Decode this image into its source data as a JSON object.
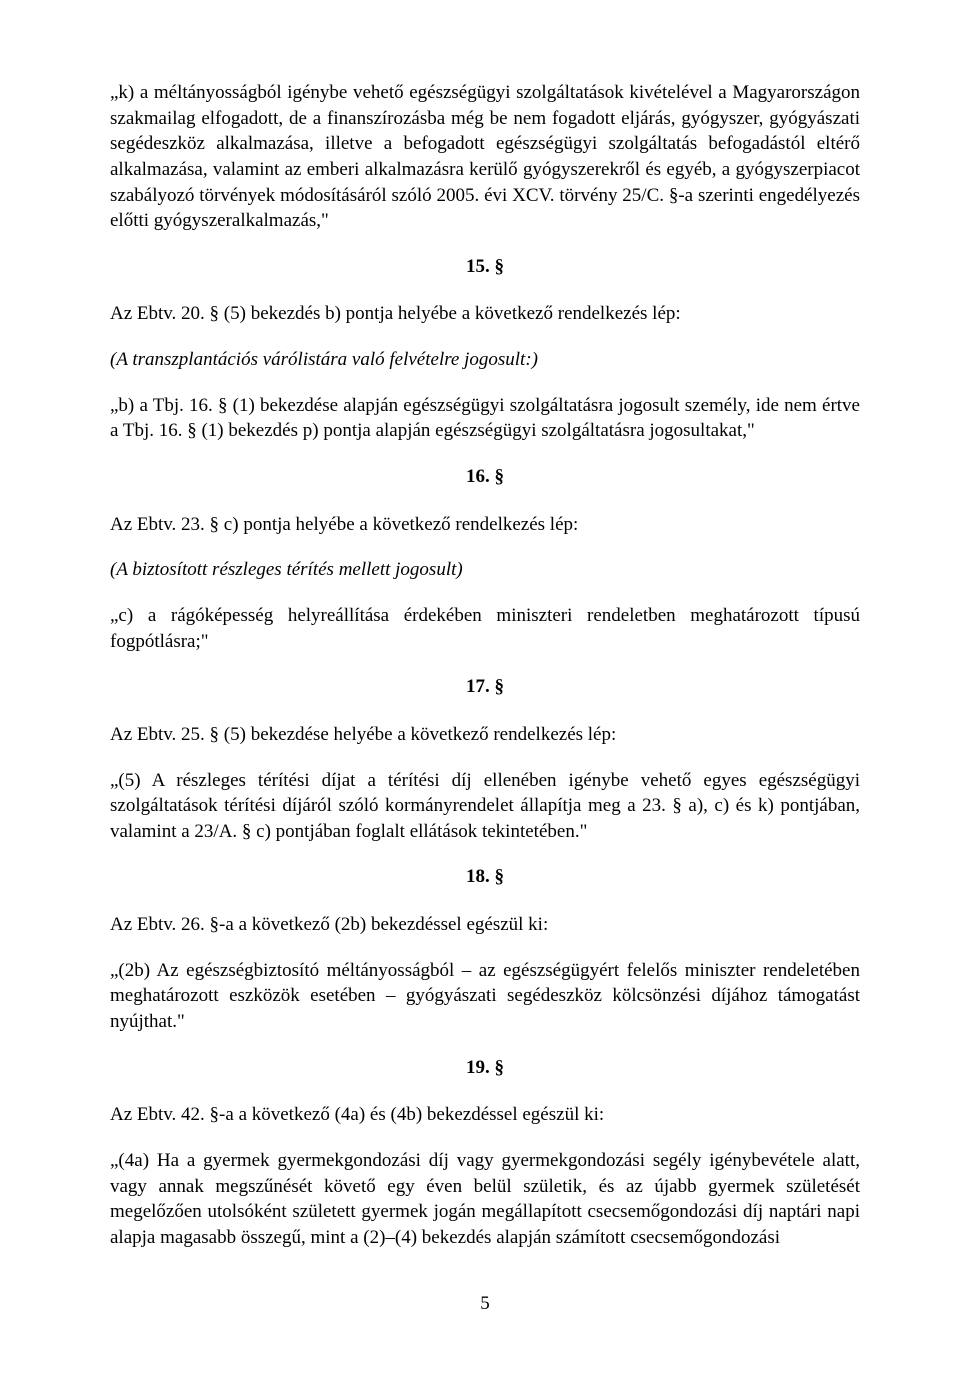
{
  "p1": "„k) a méltányosságból igénybe vehető egészségügyi szolgáltatások kivételével a Magyarországon szakmailag elfogadott, de a finanszírozásba még be nem fogadott eljárás, gyógyszer, gyógyászati segédeszköz alkalmazása, illetve a befogadott egészségügyi szolgáltatás befogadástól eltérő alkalmazása, valamint az emberi alkalmazásra kerülő gyógyszerekről és egyéb, a gyógyszerpiacot szabályozó törvények módosításáról szóló 2005. évi XCV. törvény 25/C. §-a szerinti engedélyezés előtti gyógyszeralkalmazás,\"",
  "s15": "15. §",
  "p2": "Az Ebtv. 20. § (5) bekezdés b) pontja helyébe a következő rendelkezés lép:",
  "p3": "(A transzplantációs várólistára való felvételre jogosult:)",
  "p4": "„b) a Tbj. 16. § (1) bekezdése alapján egészségügyi szolgáltatásra jogosult személy, ide nem értve a Tbj. 16. § (1) bekezdés p) pontja alapján egészségügyi szolgáltatásra jogosultakat,\"",
  "s16": "16. §",
  "p5": "Az Ebtv. 23. § c) pontja helyébe a következő rendelkezés lép:",
  "p6": "(A biztosított részleges térítés mellett jogosult)",
  "p7": "„c) a rágóképesség helyreállítása érdekében miniszteri rendeletben meghatározott típusú fogpótlásra;\"",
  "s17": "17. §",
  "p8": "Az Ebtv. 25. § (5) bekezdése helyébe a következő rendelkezés lép:",
  "p9": "„(5) A részleges térítési díjat a térítési díj ellenében igénybe vehető egyes egészségügyi szolgáltatások térítési díjáról szóló kormányrendelet állapítja meg a 23. § a), c) és k) pontjában, valamint a 23/A. § c) pontjában foglalt ellátások tekintetében.\"",
  "s18": "18. §",
  "p10": "Az Ebtv. 26. §-a a következő (2b) bekezdéssel egészül ki:",
  "p11": "„(2b) Az egészségbiztosító méltányosságból – az egészségügyért felelős miniszter rendeletében meghatározott eszközök esetében – gyógyászati segédeszköz kölcsönzési díjához támogatást nyújthat.\"",
  "s19": "19. §",
  "p12": "Az Ebtv. 42. §-a a következő (4a) és (4b) bekezdéssel egészül ki:",
  "p13": "„(4a) Ha a gyermek gyermekgondozási díj vagy gyermekgondozási segély igénybevétele alatt, vagy annak megszűnését követő egy éven belül születik, és az újabb gyermek születését megelőzően utolsóként született gyermek jogán megállapított csecsemőgondozási díj naptári napi alapja magasabb összegű, mint a (2)–(4) bekezdés alapján számított csecsemőgondozási",
  "pagenum": "5"
}
